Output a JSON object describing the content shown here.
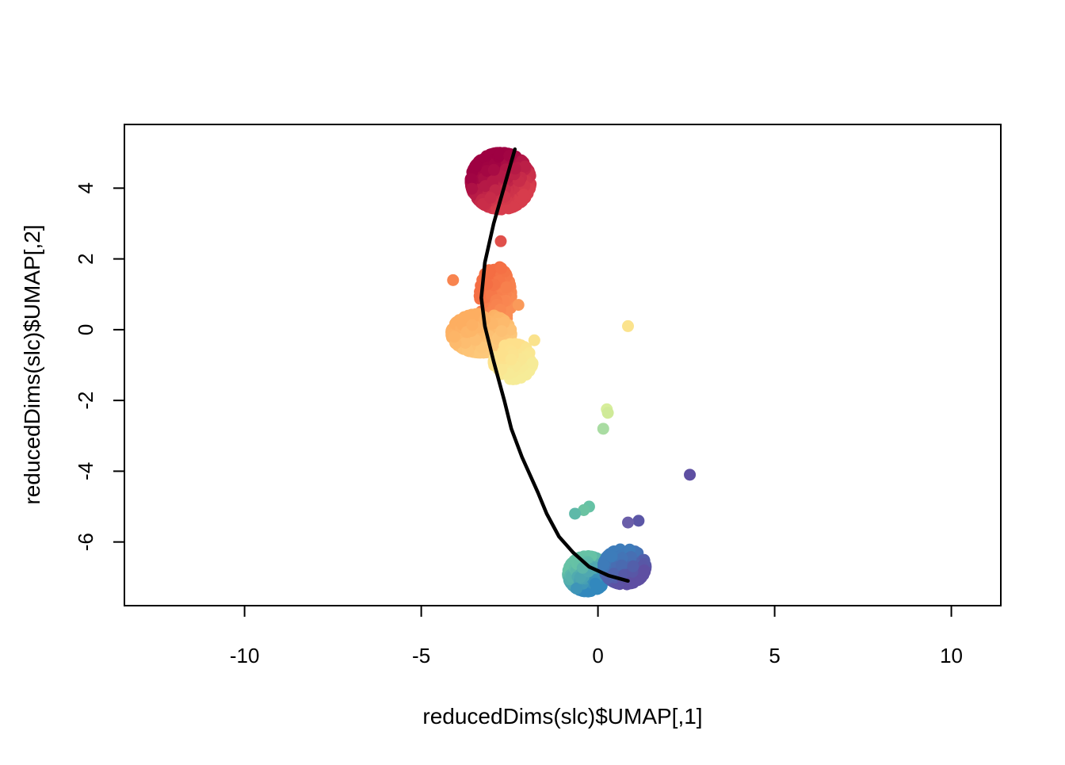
{
  "chart_data": {
    "type": "scatter",
    "title": "",
    "xlabel": "reducedDims(slc)$UMAP[,1]",
    "ylabel": "reducedDims(slc)$UMAP[,2]",
    "xlim": [
      -13.4,
      11.4
    ],
    "ylim": [
      -7.8,
      5.8
    ],
    "xticks": [
      -10,
      -5,
      0,
      5,
      10
    ],
    "yticks": [
      -6,
      -4,
      -2,
      0,
      2,
      4
    ],
    "x_tick_labels": [
      "-10",
      "-5",
      "0",
      "5",
      "10"
    ],
    "y_tick_labels": [
      "-6",
      "-4",
      "-2",
      "0",
      "2",
      "4"
    ],
    "grid": false,
    "legend": "none",
    "color_scale": "Spectral (pseudotime)",
    "clusters": [
      {
        "center": [
          -2.75,
          4.2
        ],
        "spread": [
          0.85,
          0.8
        ],
        "count": 700,
        "color_from": "#9e0142",
        "color_to": "#d73c4c"
      },
      {
        "center": [
          -2.9,
          0.9
        ],
        "spread": [
          0.45,
          0.9
        ],
        "count": 170,
        "color_from": "#f46d43",
        "color_to": "#fa8e55"
      },
      {
        "center": [
          -3.3,
          -0.1
        ],
        "spread": [
          0.85,
          0.55
        ],
        "count": 330,
        "color_from": "#fdae61",
        "color_to": "#fdc87a"
      },
      {
        "center": [
          -2.4,
          -0.9
        ],
        "spread": [
          0.55,
          0.5
        ],
        "count": 160,
        "color_from": "#fee08b",
        "color_to": "#f6ec98"
      },
      {
        "center": [
          -0.3,
          -6.9
        ],
        "spread": [
          0.55,
          0.5
        ],
        "count": 380,
        "color_from": "#66c2a5",
        "color_to": "#3288bd"
      },
      {
        "center": [
          0.75,
          -6.7
        ],
        "spread": [
          0.6,
          0.5
        ],
        "count": 330,
        "color_from": "#3d7cba",
        "color_to": "#5e4fa2"
      }
    ],
    "outliers": [
      {
        "x": -2.75,
        "y": 2.5,
        "color": "#e0504b"
      },
      {
        "x": -2.25,
        "y": 0.7,
        "color": "#fa9a5a"
      },
      {
        "x": -1.8,
        "y": -0.3,
        "color": "#fae28c"
      },
      {
        "x": -4.1,
        "y": 1.4,
        "color": "#f8844f"
      },
      {
        "x": 0.85,
        "y": 0.1,
        "color": "#fbe38d"
      },
      {
        "x": 0.25,
        "y": -2.25,
        "color": "#d7ee9b"
      },
      {
        "x": 0.28,
        "y": -2.35,
        "color": "#cfea98"
      },
      {
        "x": 0.15,
        "y": -2.8,
        "color": "#a9dca2"
      },
      {
        "x": 2.6,
        "y": -4.1,
        "color": "#5e4fa2"
      },
      {
        "x": 1.15,
        "y": -5.4,
        "color": "#5b56a6"
      },
      {
        "x": 0.85,
        "y": -5.45,
        "color": "#6a5ea9"
      },
      {
        "x": -0.25,
        "y": -5.0,
        "color": "#66c2a5"
      },
      {
        "x": -0.4,
        "y": -5.1,
        "color": "#6bc3a2"
      },
      {
        "x": -0.65,
        "y": -5.2,
        "color": "#5fb9a9"
      }
    ],
    "curve": {
      "color": "#000000",
      "points": [
        [
          -2.35,
          5.1
        ],
        [
          -2.65,
          4.05
        ],
        [
          -2.95,
          3.0
        ],
        [
          -3.2,
          1.9
        ],
        [
          -3.3,
          0.9
        ],
        [
          -3.2,
          0.1
        ],
        [
          -2.95,
          -0.9
        ],
        [
          -2.65,
          -2.0
        ],
        [
          -2.45,
          -2.8
        ],
        [
          -2.15,
          -3.6
        ],
        [
          -1.7,
          -4.6
        ],
        [
          -1.45,
          -5.2
        ],
        [
          -1.1,
          -5.85
        ],
        [
          -0.7,
          -6.3
        ],
        [
          -0.25,
          -6.7
        ],
        [
          0.3,
          -6.95
        ],
        [
          0.85,
          -7.1
        ]
      ]
    }
  }
}
